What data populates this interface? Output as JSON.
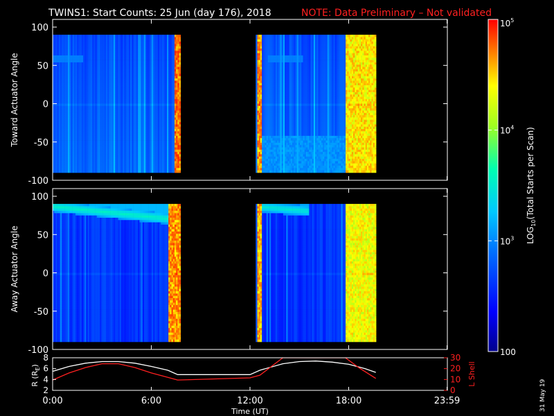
{
  "header": {
    "title": "TWINS1: Start Counts: 25 Jun (day 176), 2018",
    "note": "NOTE: Data Preliminary – Not validated"
  },
  "date_stamp": "31 May 19",
  "colors": {
    "background": "#000000",
    "text": "#ffffff",
    "note": "#ff2020",
    "r_line": "#ffffff",
    "lshell_line": "#ff2020"
  },
  "colorbar": {
    "label": "LOG10(Total Starts per Scan)",
    "label_base": "LOG",
    "label_sub": "10",
    "label_rest": "(Total Starts per Scan)",
    "scale": "log",
    "range": [
      100,
      100000
    ],
    "ticks": [
      {
        "value": 100,
        "label": "100"
      },
      {
        "value": 1000,
        "label": "10",
        "exp": "3"
      },
      {
        "value": 10000,
        "label": "10",
        "exp": "4"
      },
      {
        "value": 100000,
        "label": "10",
        "exp": "5"
      }
    ]
  },
  "chart_data": [
    {
      "type": "heatmap",
      "ylabel": "Toward Actuator Angle",
      "ylim": [
        -100,
        110
      ],
      "yticks": [
        "100",
        "50",
        "0",
        "-50",
        "-100"
      ],
      "yvalues": [
        100,
        50,
        0,
        -50,
        -100
      ],
      "x_unit": "hours UT",
      "xlim": [
        0,
        24
      ],
      "data_windows": [
        [
          0,
          7.7
        ],
        [
          12.35,
          19.65
        ]
      ],
      "baseline_counts": 500,
      "features": [
        {
          "kind": "band",
          "x": [
            7.35,
            7.7
          ],
          "counts": 60000
        },
        {
          "kind": "band",
          "x": [
            12.35,
            12.7
          ],
          "counts": 50000
        },
        {
          "kind": "band",
          "x": [
            17.8,
            19.65
          ],
          "counts": 30000
        },
        {
          "kind": "streak",
          "angle": 60,
          "x": [
            0,
            1.8
          ],
          "counts": 900
        },
        {
          "kind": "streak",
          "angle": 60,
          "x": [
            13.0,
            15.2
          ],
          "counts": 900
        },
        {
          "kind": "region",
          "angle": [
            -88,
            -40
          ],
          "x": [
            12.7,
            17.8
          ],
          "counts": 1100
        }
      ]
    },
    {
      "type": "heatmap",
      "ylabel": "Away Actuator Angle",
      "ylim": [
        -100,
        110
      ],
      "yticks": [
        "100",
        "50",
        "0",
        "-50",
        "-100"
      ],
      "yvalues": [
        100,
        50,
        0,
        -50,
        -100
      ],
      "x_unit": "hours UT",
      "xlim": [
        0,
        24
      ],
      "data_windows": [
        [
          0,
          7.7
        ],
        [
          12.35,
          19.65
        ]
      ],
      "baseline_counts": 400,
      "features": [
        {
          "kind": "band",
          "x": [
            7.0,
            7.7
          ],
          "counts": 50000
        },
        {
          "kind": "band",
          "x": [
            12.35,
            12.7
          ],
          "counts": 40000
        },
        {
          "kind": "band",
          "x": [
            17.8,
            19.65
          ],
          "counts": 25000
        },
        {
          "kind": "ridge",
          "angle": [
            88,
            72
          ],
          "x": [
            0,
            7.0
          ],
          "counts": 3500
        },
        {
          "kind": "ridge",
          "angle": [
            88,
            82
          ],
          "x": [
            12.35,
            15.5
          ],
          "counts": 3000
        }
      ]
    },
    {
      "type": "line",
      "xlabel": "Time (UT)",
      "xticks": [
        "0:00",
        "6:00",
        "12:00",
        "18:00",
        "23:59"
      ],
      "xtick_values": [
        0,
        6,
        12,
        18,
        23.98
      ],
      "xlim": [
        0,
        24
      ],
      "left_axis": {
        "label": "R (RE)",
        "label_base": "R (R",
        "label_sub": "E",
        "label_close": ")",
        "ylim": [
          2,
          8
        ],
        "ticks": [
          "8",
          "6",
          "4",
          "2"
        ],
        "tick_values": [
          8,
          6,
          4,
          2
        ]
      },
      "right_axis": {
        "label": "L Shell",
        "ylim": [
          0,
          30
        ],
        "ticks": [
          "30",
          "20",
          "10",
          "0"
        ],
        "tick_values": [
          30,
          20,
          10,
          0
        ]
      },
      "series": [
        {
          "axis": "left",
          "x": [
            0,
            1,
            2,
            3,
            4,
            5,
            6,
            7,
            7.6,
            12.0,
            12.6,
            14,
            15,
            16,
            17,
            18,
            19,
            19.65
          ],
          "y": [
            5.5,
            6.4,
            7.0,
            7.3,
            7.3,
            7.0,
            6.4,
            5.7,
            4.9,
            4.9,
            5.7,
            6.9,
            7.3,
            7.4,
            7.2,
            6.8,
            6.0,
            5.3
          ]
        },
        {
          "axis": "right",
          "x": [
            0,
            1,
            2,
            3,
            4,
            5,
            6,
            7,
            7.6,
            12.0,
            12.6,
            14.0,
            17.8,
            18.6,
            19.65
          ],
          "y": [
            9.5,
            16,
            21,
            24.5,
            24.5,
            21,
            16,
            12,
            9.5,
            11.5,
            14,
            30,
            30,
            21,
            11
          ]
        }
      ]
    }
  ]
}
